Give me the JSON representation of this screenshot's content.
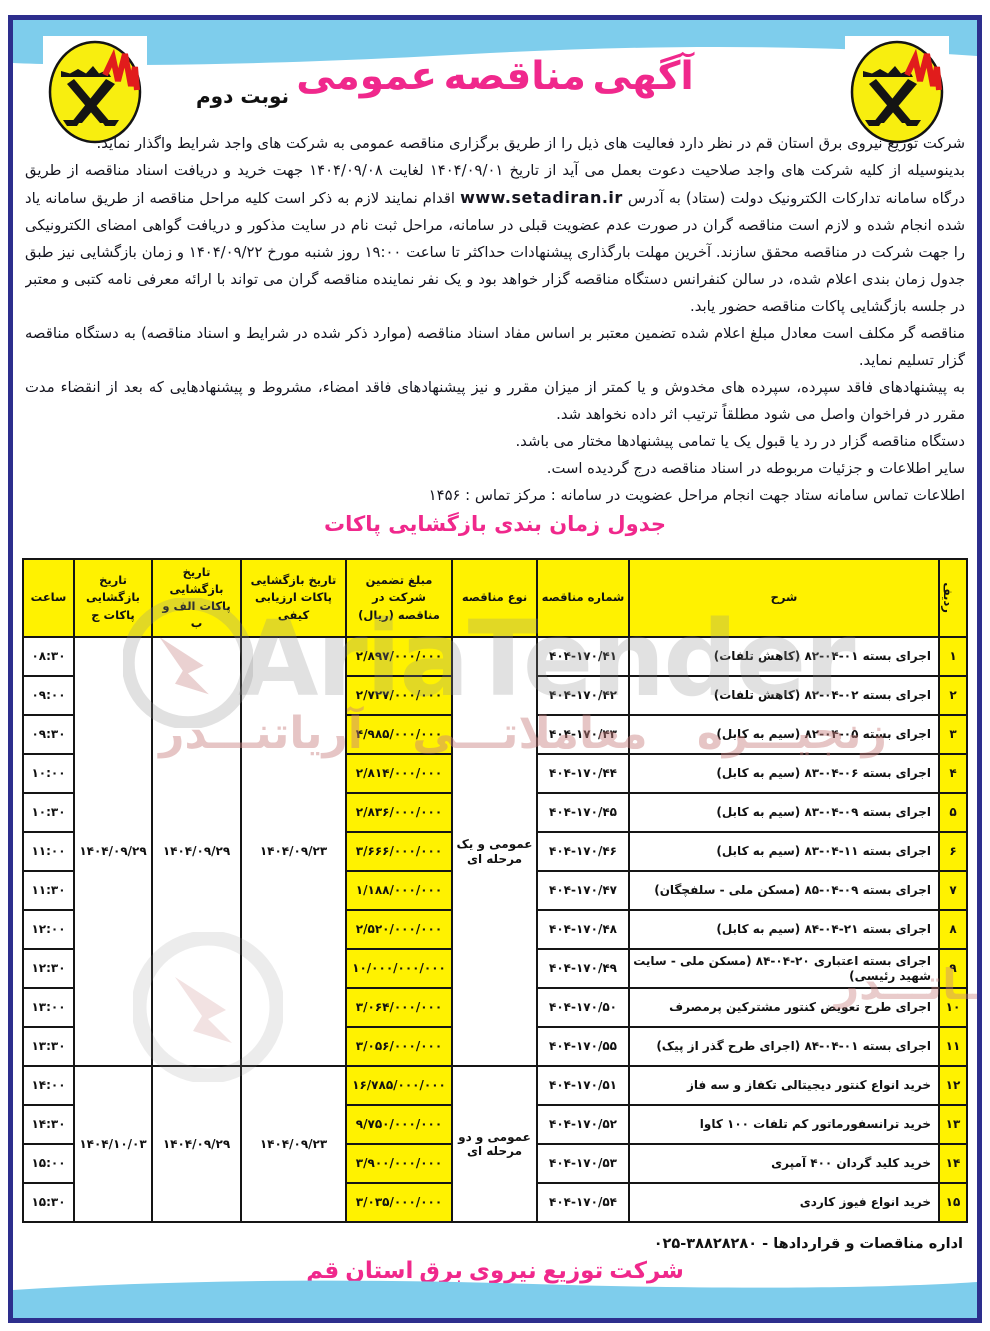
{
  "page": {
    "title": "آگهی مناقصه عمومی",
    "edition": "نوبت دوم"
  },
  "body": {
    "p1": "شرکت توزیع نیروی برق استان قم در نظر دارد فعالیت های ذیل را از طریق برگزاری مناقصه عمومی به شرکت های واجد شرایط واگذار نماید.",
    "p2_before_url": "بدینوسیله از کلیه شرکت های واجد صلاحیت دعوت بعمل می آید از تاریخ ۱۴۰۴/۰۹/۰۱ لغایت ۱۴۰۴/۰۹/۰۸ جهت خرید و دریافت اسناد مناقصه از طریق درگاه سامانه تدارکات الکترونیک دولت (ستاد) به آدرس",
    "p2_url": "www.setadiran.ir",
    "p2_after_url": "اقدام نمایند لازم به ذکر است کلیه مراحل مناقصه از طریق سامانه یاد شده انجام شده و لازم است مناقصه گران در صورت عدم عضویت قبلی در سامانه، مراحل ثبت نام در سایت مذکور و دریافت گواهی امضای الکترونیکی را جهت شرکت در مناقصه محقق سازند. آخرین مهلت بارگذاری پیشنهادات حداکثر تا ساعت ۱۹:۰۰ روز شنبه مورخ ۱۴۰۴/۰۹/۲۲ و زمان بازگشایی نیز طبق جدول زمان بندی اعلام شده، در سالن کنفرانس دستگاه مناقصه گزار خواهد بود و یک نفر نماینده مناقصه گران می تواند با ارائه معرفی نامه کتبی و معتبر در جلسه بازگشایی پاکات مناقصه حضور یابد.",
    "p3": "مناقصه گر مکلف است معادل مبلغ اعلام شده تضمین معتبر بر اساس مفاد اسناد مناقصه (موارد ذکر شده در شرایط و اسناد مناقصه) به دستگاه مناقصه گزار تسلیم نماید.",
    "p4": "به پیشنهادهای فاقد سپرده، سپرده های مخدوش و یا کمتر از میزان مقرر و نیز پیشنهادهای فاقد امضاء، مشروط و پیشنهادهایی که بعد از انقضاء مدت مقرر در فراخوان واصل می شود مطلقاً ترتیب اثر داده نخواهد شد.",
    "p5": "دستگاه مناقصه گزار در رد یا قبول یک یا تمامی پیشنهادها مختار می باشد.",
    "p6": "سایر اطلاعات و جزئیات مربوطه در اسناد مناقصه درج گردیده است.",
    "p7": "اطلاعات تماس سامانه ستاد جهت انجام مراحل عضویت در سامانه : مرکز تماس : ۱۴۵۶"
  },
  "table": {
    "caption": "جدول زمان بندی بازگشایی پاکات",
    "headers": [
      "ردیف",
      "شرح",
      "شماره مناقصه",
      "نوع مناقصه",
      "مبلغ تضمین شرکت در مناقصه (ریال)",
      "تاریخ بازگشایی پاکات ارزیابی کیفی",
      "تاریخ بازگشایی پاکات الف و ب",
      "تاریخ بازگشایی پاکات ج",
      "ساعت"
    ],
    "groups": [
      {
        "start": 0,
        "count": 11,
        "type": "عمومی و یک مرحله ای",
        "qual_date": "۱۴۰۴/۰۹/۲۳",
        "ab_date": "۱۴۰۴/۰۹/۲۹",
        "c_date": "۱۴۰۴/۰۹/۲۹"
      },
      {
        "start": 11,
        "count": 4,
        "type": "عمومی و دو مرحله ای",
        "qual_date": "۱۴۰۴/۰۹/۲۳",
        "ab_date": "۱۴۰۴/۰۹/۲۹",
        "c_date": "۱۴۰۴/۱۰/۰۳"
      }
    ],
    "rows": [
      {
        "no": "۱",
        "desc": "اجرای بسته ۰۱-۰۴-۸۲ (کاهش تلفات)",
        "tender": "۴۰۴-۱۷۰/۴۱",
        "amount": "۲/۸۹۷/۰۰۰/۰۰۰",
        "time": "۰۸:۳۰"
      },
      {
        "no": "۲",
        "desc": "اجرای بسته ۰۲-۰۴-۸۲ (کاهش تلفات)",
        "tender": "۴۰۴-۱۷۰/۴۲",
        "amount": "۲/۷۲۷/۰۰۰/۰۰۰",
        "time": "۰۹:۰۰"
      },
      {
        "no": "۳",
        "desc": "اجرای بسته ۰۵-۰۴-۸۲ (سیم به کابل)",
        "tender": "۴۰۴-۱۷۰/۴۳",
        "amount": "۴/۹۸۵/۰۰۰/۰۰۰",
        "time": "۰۹:۳۰"
      },
      {
        "no": "۴",
        "desc": "اجرای بسته ۰۶-۰۴-۸۳ (سیم به کابل)",
        "tender": "۴۰۴-۱۷۰/۴۴",
        "amount": "۲/۸۱۴/۰۰۰/۰۰۰",
        "time": "۱۰:۰۰"
      },
      {
        "no": "۵",
        "desc": "اجرای بسته ۰۹-۰۴-۸۳ (سیم به کابل)",
        "tender": "۴۰۴-۱۷۰/۴۵",
        "amount": "۲/۸۳۶/۰۰۰/۰۰۰",
        "time": "۱۰:۳۰"
      },
      {
        "no": "۶",
        "desc": "اجرای بسته ۱۱-۰۴-۸۳ (سیم به کابل)",
        "tender": "۴۰۴-۱۷۰/۴۶",
        "amount": "۳/۶۶۶/۰۰۰/۰۰۰",
        "time": "۱۱:۰۰"
      },
      {
        "no": "۷",
        "desc": "اجرای بسته ۰۹-۰۴-۸۵ (مسکن ملی - سلفچگان)",
        "tender": "۴۰۴-۱۷۰/۴۷",
        "amount": "۱/۱۸۸/۰۰۰/۰۰۰",
        "time": "۱۱:۳۰"
      },
      {
        "no": "۸",
        "desc": "اجرای بسته ۲۱-۰۴-۸۴ (سیم به کابل)",
        "tender": "۴۰۴-۱۷۰/۴۸",
        "amount": "۲/۵۲۰/۰۰۰/۰۰۰",
        "time": "۱۲:۰۰"
      },
      {
        "no": "۹",
        "desc": "اجرای بسته اعتباری ۲۰-۰۴-۸۴ (مسکن ملی - سایت شهید رئیسی)",
        "tender": "۴۰۴-۱۷۰/۴۹",
        "amount": "۱۰/۰۰۰/۰۰۰/۰۰۰",
        "time": "۱۲:۳۰"
      },
      {
        "no": "۱۰",
        "desc": "اجرای طرح تعویض کنتور مشترکین پرمصرف",
        "tender": "۴۰۴-۱۷۰/۵۰",
        "amount": "۳/۰۶۴/۰۰۰/۰۰۰",
        "time": "۱۳:۰۰"
      },
      {
        "no": "۱۱",
        "desc": "اجرای بسته ۰۱-۰۴-۸۴ (اجرای طرح گذر از پیک)",
        "tender": "۴۰۴-۱۷۰/۵۵",
        "amount": "۳/۰۵۶/۰۰۰/۰۰۰",
        "time": "۱۳:۳۰"
      },
      {
        "no": "۱۲",
        "desc": "خرید انواع کنتور دیجیتالی تکفاز و سه فاز",
        "tender": "۴۰۴-۱۷۰/۵۱",
        "amount": "۱۶/۷۸۵/۰۰۰/۰۰۰",
        "time": "۱۴:۰۰"
      },
      {
        "no": "۱۳",
        "desc": "خرید ترانسفورماتور کم تلفات ۱۰۰ کاوا",
        "tender": "۴۰۴-۱۷۰/۵۲",
        "amount": "۹/۷۵۰/۰۰۰/۰۰۰",
        "time": "۱۴:۳۰"
      },
      {
        "no": "۱۴",
        "desc": "خرید کلید گردان ۴۰۰ آمپری",
        "tender": "۴۰۴-۱۷۰/۵۳",
        "amount": "۳/۹۰۰/۰۰۰/۰۰۰",
        "time": "۱۵:۰۰"
      },
      {
        "no": "۱۵",
        "desc": "خرید انواع فیوز کاردی",
        "tender": "۴۰۴-۱۷۰/۵۴",
        "amount": "۳/۰۳۵/۰۰۰/۰۰۰",
        "time": "۱۵:۳۰"
      }
    ]
  },
  "watermark": {
    "latin": "AriaTender",
    "persian": "زنجیـــره معاملاتـــی آریاتنـــدر",
    "persian_fragment": "ریـــاتـــدر"
  },
  "footer": {
    "department": "اداره مناقصات و قراردادها - ۳۸۸۲۸۲۸۰-۰۲۵",
    "company": "شرکت توزیع نیروی برق استان قم"
  },
  "icons": {
    "logo": "electric-power-distribution-logo",
    "watermark_logo": "ariatender-arrow-logo"
  },
  "colors": {
    "accent_magenta": "#f0288c",
    "highlight_yellow": "#fff200",
    "band_blue": "#7ecdec",
    "border_navy": "#2d2e8d",
    "logo_yellow": "#f8ee0f",
    "logo_red": "#e11c1c",
    "table_border": "#151515"
  }
}
